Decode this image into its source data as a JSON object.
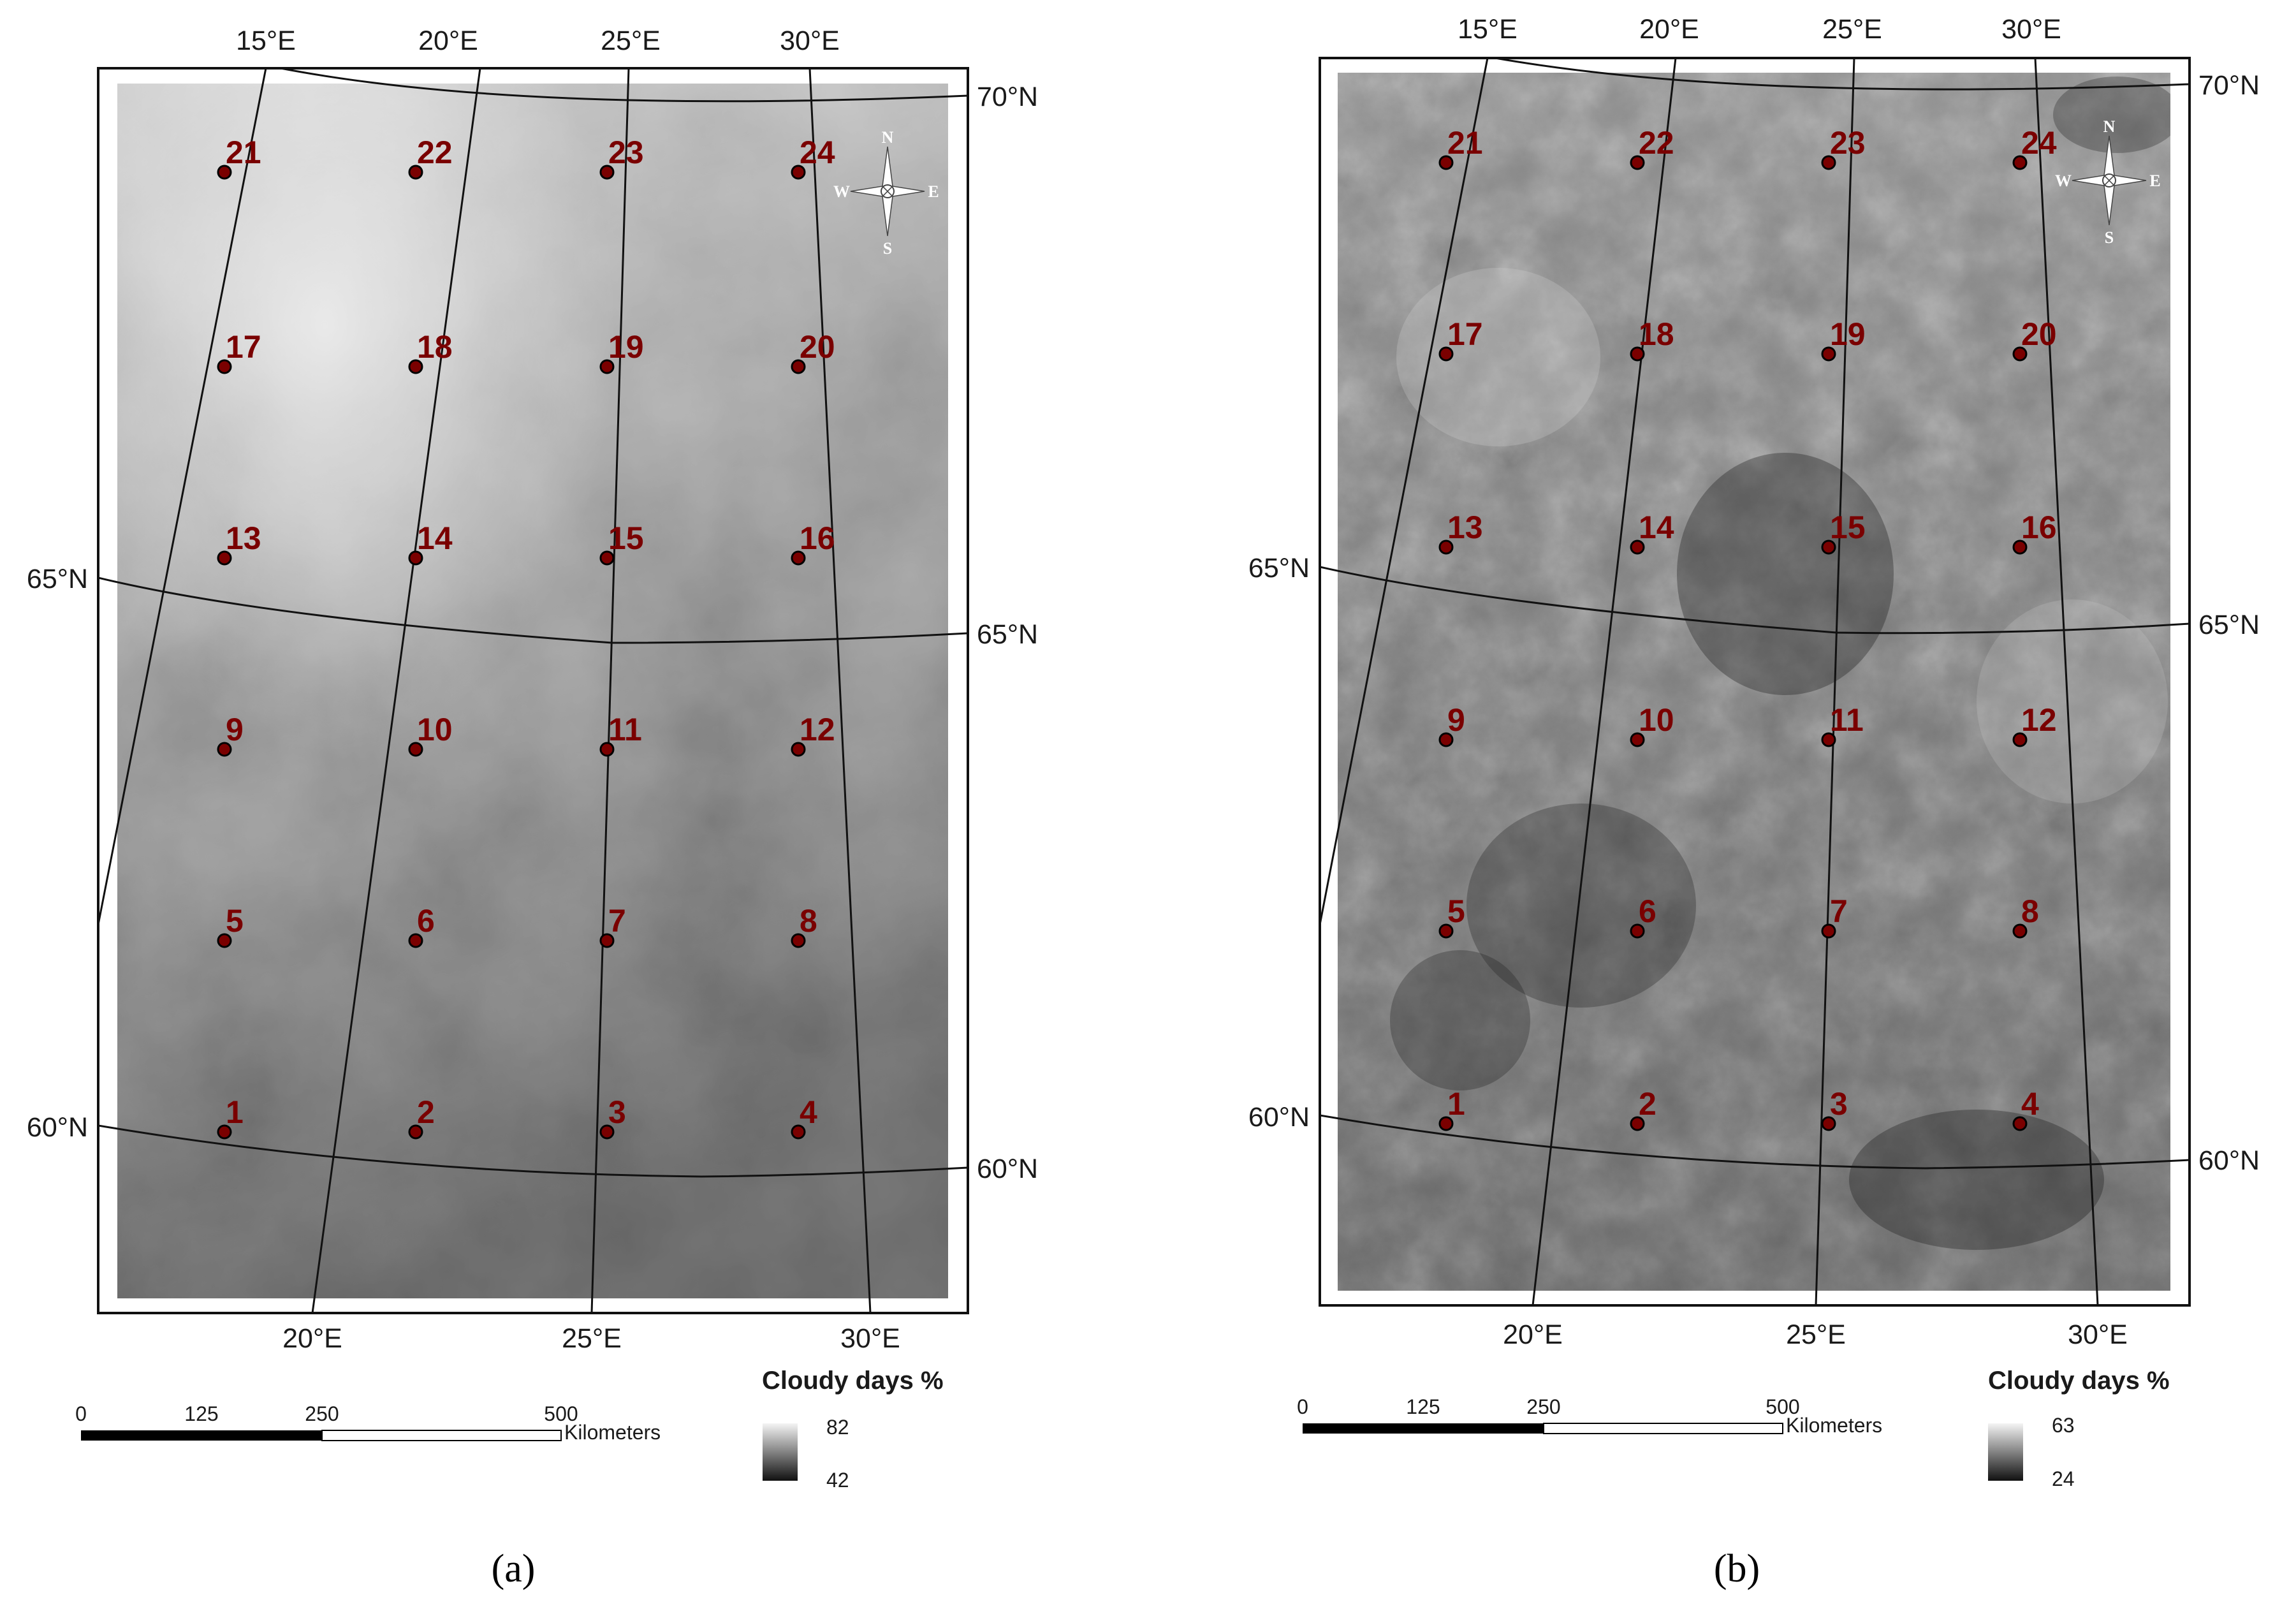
{
  "panels": [
    {
      "id": "a",
      "caption": "(a)",
      "top_lon_labels": [
        "15°E",
        "20°E",
        "25°E",
        "30°E"
      ],
      "bottom_lon_labels": [
        "20°E",
        "25°E",
        "30°E"
      ],
      "left_lat_labels": [
        "65°N",
        "60°N"
      ],
      "right_lat_labels": [
        "70°N",
        "65°N",
        "60°N"
      ],
      "legend": {
        "title": "Cloudy days %",
        "max": "82",
        "min": "42"
      },
      "scale_bar": {
        "ticks": [
          "0",
          "125",
          "250",
          "500"
        ],
        "unit": "Kilometers"
      },
      "compass": {
        "n": "N",
        "s": "S",
        "e": "E",
        "w": "W"
      },
      "points": [
        "1",
        "2",
        "3",
        "4",
        "5",
        "6",
        "7",
        "8",
        "9",
        "10",
        "11",
        "12",
        "13",
        "14",
        "15",
        "16",
        "17",
        "18",
        "19",
        "20",
        "21",
        "22",
        "23",
        "24"
      ]
    },
    {
      "id": "b",
      "caption": "(b)",
      "top_lon_labels": [
        "15°E",
        "20°E",
        "25°E",
        "30°E"
      ],
      "bottom_lon_labels": [
        "20°E",
        "25°E",
        "30°E"
      ],
      "left_lat_labels": [
        "65°N",
        "60°N"
      ],
      "right_lat_labels": [
        "70°N",
        "65°N",
        "60°N"
      ],
      "legend": {
        "title": "Cloudy days %",
        "max": "63",
        "min": "24"
      },
      "scale_bar": {
        "ticks": [
          "0",
          "125",
          "250",
          "500"
        ],
        "unit": "Kilometers"
      },
      "compass": {
        "n": "N",
        "s": "S",
        "e": "E",
        "w": "W"
      },
      "points": [
        "1",
        "2",
        "3",
        "4",
        "5",
        "6",
        "7",
        "8",
        "9",
        "10",
        "11",
        "12",
        "13",
        "14",
        "15",
        "16",
        "17",
        "18",
        "19",
        "20",
        "21",
        "22",
        "23",
        "24"
      ]
    }
  ],
  "colors": {
    "point_fill": "#7a0000",
    "label_color": "#7a0000",
    "graticule": "#111111",
    "ramp_light": "#f4f4f4",
    "ramp_dark": "#111111"
  }
}
